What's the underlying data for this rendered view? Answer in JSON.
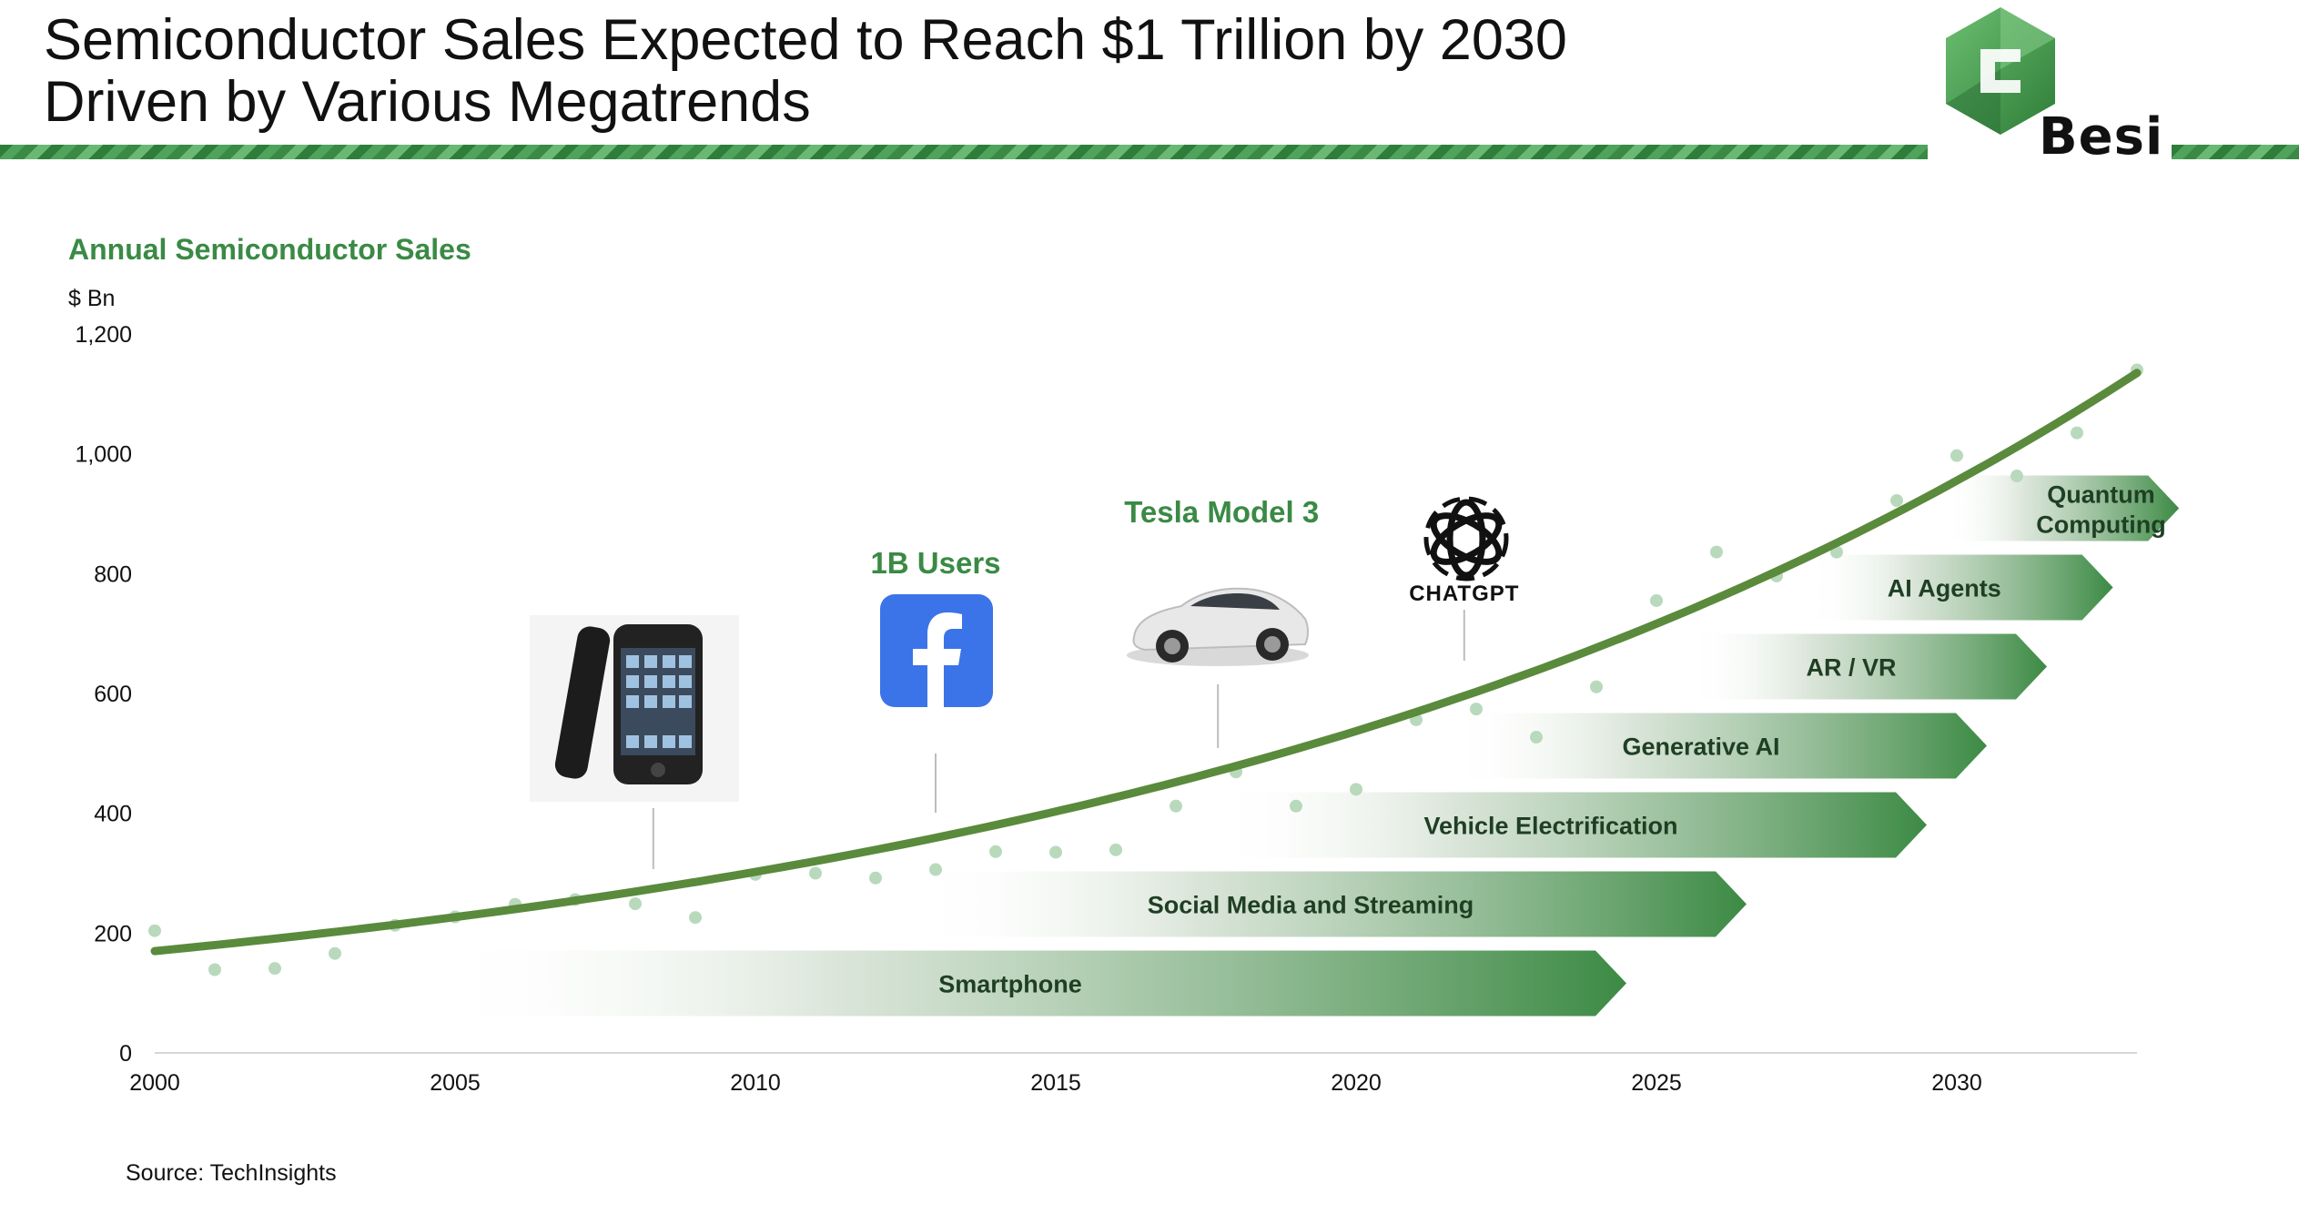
{
  "header": {
    "title_line1": "Semiconductor Sales Expected to Reach $1 Trillion by 2030",
    "title_line2": "Driven by Various Megatrends",
    "logo_text": "Besi"
  },
  "colors": {
    "brand_green": "#3a8a45",
    "curve_green": "#5a8a3c",
    "dot_green": "#b9d9bc",
    "facebook_blue": "#3b74e8"
  },
  "chart_data": {
    "type": "scatter",
    "title": "Annual Semiconductor Sales",
    "ylabel": "$ Bn",
    "xlim": [
      2000,
      2033
    ],
    "ylim": [
      0,
      1200
    ],
    "x_ticks": [
      {
        "value": 2000,
        "label": "2000"
      },
      {
        "value": 2005,
        "label": "2005"
      },
      {
        "value": 2010,
        "label": "2010"
      },
      {
        "value": 2015,
        "label": "2015"
      },
      {
        "value": 2020,
        "label": "2020"
      },
      {
        "value": 2025,
        "label": "2025"
      },
      {
        "value": 2030,
        "label": "2030"
      }
    ],
    "y_ticks": [
      {
        "value": 0,
        "label": "0"
      },
      {
        "value": 200,
        "label": "200"
      },
      {
        "value": 400,
        "label": "400"
      },
      {
        "value": 600,
        "label": "600"
      },
      {
        "value": 800,
        "label": "800"
      },
      {
        "value": 1000,
        "label": "1,000"
      },
      {
        "value": 1200,
        "label": "1,200"
      }
    ],
    "points": [
      {
        "x": 2000,
        "y": 204
      },
      {
        "x": 2001,
        "y": 139
      },
      {
        "x": 2002,
        "y": 141
      },
      {
        "x": 2003,
        "y": 166
      },
      {
        "x": 2004,
        "y": 213
      },
      {
        "x": 2005,
        "y": 227
      },
      {
        "x": 2006,
        "y": 248
      },
      {
        "x": 2007,
        "y": 256
      },
      {
        "x": 2008,
        "y": 249
      },
      {
        "x": 2009,
        "y": 226
      },
      {
        "x": 2010,
        "y": 298
      },
      {
        "x": 2011,
        "y": 300
      },
      {
        "x": 2012,
        "y": 292
      },
      {
        "x": 2013,
        "y": 306
      },
      {
        "x": 2014,
        "y": 336
      },
      {
        "x": 2015,
        "y": 335
      },
      {
        "x": 2016,
        "y": 339
      },
      {
        "x": 2017,
        "y": 412
      },
      {
        "x": 2018,
        "y": 469
      },
      {
        "x": 2019,
        "y": 412
      },
      {
        "x": 2020,
        "y": 440
      },
      {
        "x": 2021,
        "y": 556
      },
      {
        "x": 2022,
        "y": 574
      },
      {
        "x": 2023,
        "y": 527
      },
      {
        "x": 2024,
        "y": 611
      },
      {
        "x": 2025,
        "y": 755
      },
      {
        "x": 2026,
        "y": 836
      },
      {
        "x": 2027,
        "y": 796
      },
      {
        "x": 2028,
        "y": 836
      },
      {
        "x": 2029,
        "y": 922
      },
      {
        "x": 2030,
        "y": 997
      },
      {
        "x": 2031,
        "y": 963
      },
      {
        "x": 2032,
        "y": 1035
      },
      {
        "x": 2033,
        "y": 1140
      }
    ],
    "trend": {
      "start": {
        "x": 2000,
        "y": 170
      },
      "end": {
        "x": 2033,
        "y": 1135
      }
    },
    "megatrends": [
      {
        "label": "Smartphone",
        "start": 2004.5,
        "end": 2024.5,
        "level": 0.88
      },
      {
        "label": "Social Media and Streaming",
        "start": 2012.5,
        "end": 2026.5,
        "level": 1.88
      },
      {
        "label": "Vehicle Electrification",
        "start": 2017.5,
        "end": 2029.5,
        "level": 2.88
      },
      {
        "label": "Generative AI",
        "start": 2021.5,
        "end": 2030.5,
        "level": 3.88
      },
      {
        "label": "AR / VR",
        "start": 2025.5,
        "end": 2031.5,
        "level": 4.88
      },
      {
        "label": "AI Agents",
        "start": 2027.5,
        "end": 2032.6,
        "level": 5.88
      },
      {
        "label": "Quantum Computing",
        "label_lines": [
          "Quantum",
          "Computing"
        ],
        "start": 2029.8,
        "end": 2033.7,
        "level": 6.88
      }
    ],
    "annotations": [
      {
        "label": "",
        "icon": "smartphone-icon",
        "x": 2008.3
      },
      {
        "label": "1B Users",
        "icon": "facebook-icon",
        "x": 2013
      },
      {
        "label": "Tesla Model 3",
        "icon": "car-icon",
        "x": 2017.7
      },
      {
        "label": "CHATGPT",
        "icon": "openai-icon",
        "x": 2021.8
      }
    ]
  },
  "footer": {
    "source": "Source: TechInsights"
  }
}
